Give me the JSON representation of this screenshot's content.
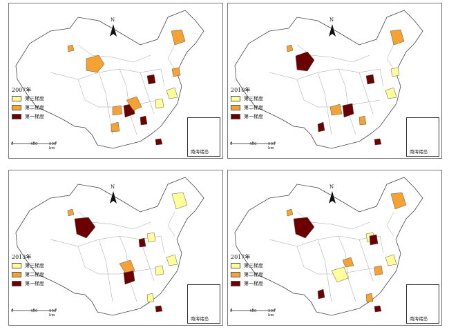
{
  "colors": {
    "tier3": "#ffff99",
    "tier2": "#f4a233",
    "tier1": "#6b0000",
    "border": "#555555"
  },
  "north_label": "N",
  "inset_label": "南海诸岛",
  "scale": {
    "zero": "0",
    "mid": "450",
    "end": "900 km"
  },
  "legend": {
    "tier3": "第三梯度",
    "tier2": "第二梯度",
    "tier1": "第一梯度"
  },
  "panels": [
    {
      "year": "2007年"
    },
    {
      "year": "2010年"
    },
    {
      "year": "2013年"
    },
    {
      "year": "2017年"
    }
  ]
}
